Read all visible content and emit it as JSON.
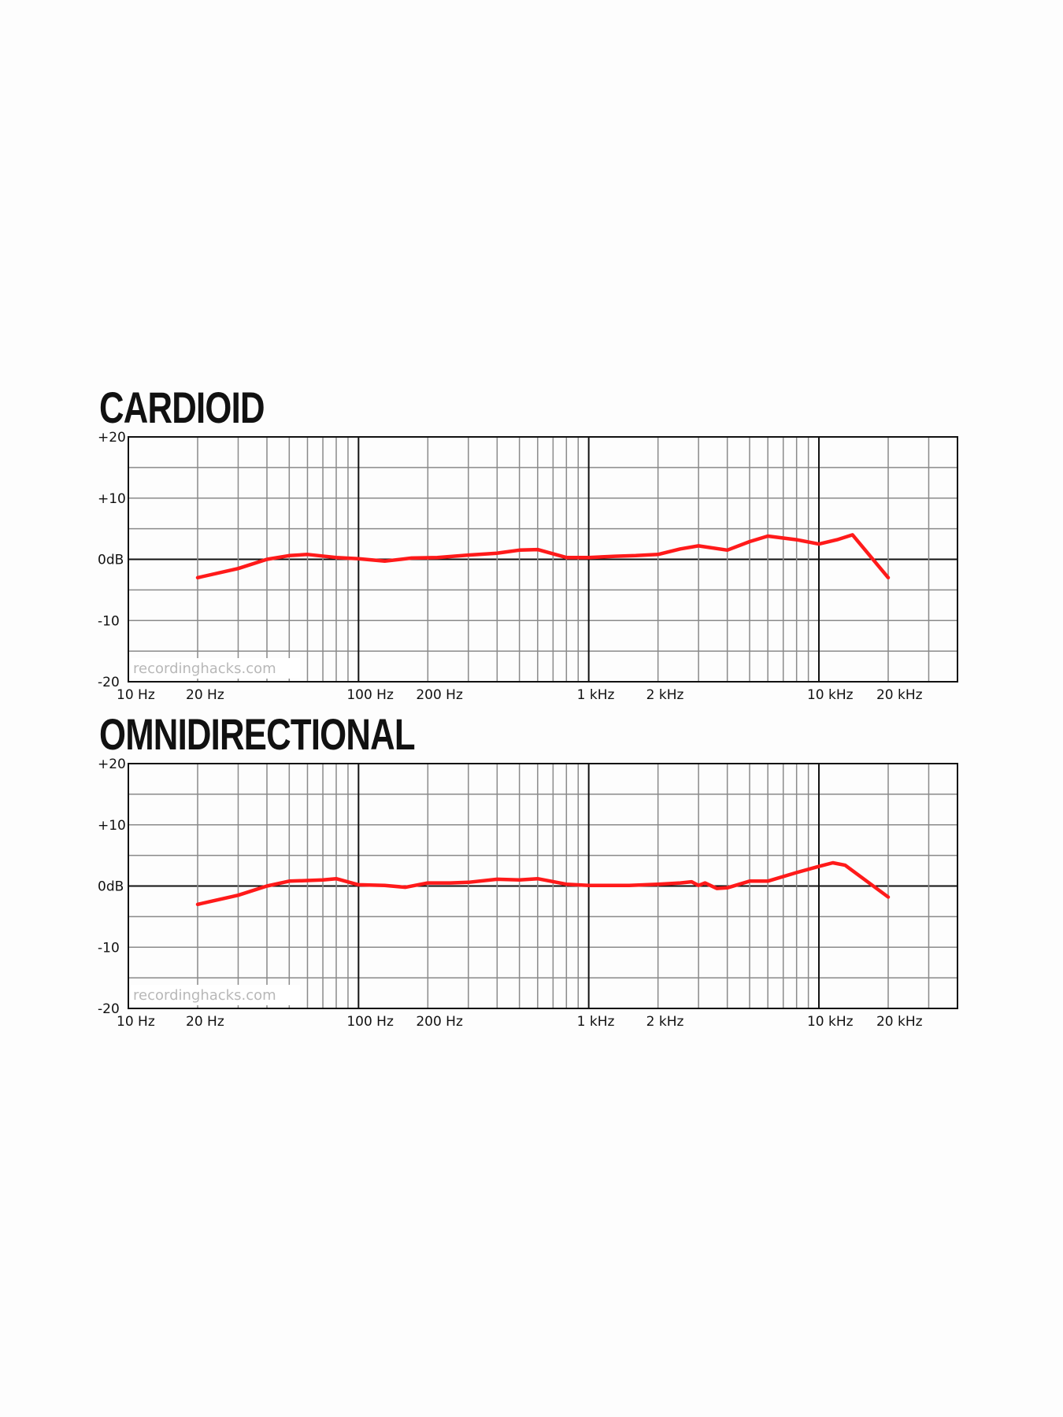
{
  "chart_data": [
    {
      "type": "line",
      "title": "CARDIOID",
      "watermark": "recordinghacks.com",
      "xscale": "log",
      "xlim": [
        10,
        40000
      ],
      "ylim": [
        -20,
        20
      ],
      "x_tick_labels": [
        {
          "value": 10,
          "label": "10 Hz"
        },
        {
          "value": 20,
          "label": "20 Hz"
        },
        {
          "value": 100,
          "label": "100 Hz"
        },
        {
          "value": 200,
          "label": "200 Hz"
        },
        {
          "value": 1000,
          "label": "1 kHz"
        },
        {
          "value": 2000,
          "label": "2 kHz"
        },
        {
          "value": 10000,
          "label": "10 kHz"
        },
        {
          "value": 20000,
          "label": "20 kHz"
        }
      ],
      "y_tick_labels": [
        {
          "value": 20,
          "label": "+20"
        },
        {
          "value": 10,
          "label": "+10"
        },
        {
          "value": 0,
          "label": "0dB"
        },
        {
          "value": -10,
          "label": "-10"
        },
        {
          "value": -20,
          "label": "-20"
        }
      ],
      "grid": true,
      "line_color": "#ff1a1a",
      "series": [
        {
          "x": [
            20,
            30,
            40,
            50,
            60,
            80,
            100,
            130,
            170,
            220,
            300,
            400,
            500,
            600,
            800,
            1000,
            1300,
            1600,
            2000,
            2500,
            3000,
            4000,
            5000,
            6000,
            8000,
            10000,
            12000,
            14000,
            20000
          ],
          "y": [
            -3,
            -1.5,
            0,
            0.6,
            0.8,
            0.3,
            0.1,
            -0.3,
            0.2,
            0.3,
            0.7,
            1.0,
            1.5,
            1.6,
            0.3,
            0.3,
            0.5,
            0.6,
            0.8,
            1.7,
            2.2,
            1.5,
            2.9,
            3.8,
            3.2,
            2.5,
            3.2,
            4.0,
            -3
          ]
        }
      ]
    },
    {
      "type": "line",
      "title": "OMNIDIRECTIONAL",
      "watermark": "recordinghacks.com",
      "xscale": "log",
      "xlim": [
        10,
        40000
      ],
      "ylim": [
        -20,
        20
      ],
      "x_tick_labels": [
        {
          "value": 10,
          "label": "10 Hz"
        },
        {
          "value": 20,
          "label": "20 Hz"
        },
        {
          "value": 100,
          "label": "100 Hz"
        },
        {
          "value": 200,
          "label": "200 Hz"
        },
        {
          "value": 1000,
          "label": "1 kHz"
        },
        {
          "value": 2000,
          "label": "2 kHz"
        },
        {
          "value": 10000,
          "label": "10 kHz"
        },
        {
          "value": 20000,
          "label": "20 kHz"
        }
      ],
      "y_tick_labels": [
        {
          "value": 20,
          "label": "+20"
        },
        {
          "value": 10,
          "label": "+10"
        },
        {
          "value": 0,
          "label": "0dB"
        },
        {
          "value": -10,
          "label": "-10"
        },
        {
          "value": -20,
          "label": "-20"
        }
      ],
      "grid": true,
      "line_color": "#ff1a1a",
      "series": [
        {
          "x": [
            20,
            30,
            40,
            50,
            60,
            70,
            80,
            100,
            130,
            160,
            200,
            250,
            300,
            400,
            500,
            600,
            800,
            1000,
            1500,
            2000,
            2500,
            2800,
            3000,
            3200,
            3600,
            4000,
            5000,
            6000,
            8000,
            10000,
            11500,
            13000,
            20000
          ],
          "y": [
            -3,
            -1.5,
            0,
            0.8,
            0.9,
            1.0,
            1.2,
            0.2,
            0.1,
            -0.2,
            0.5,
            0.5,
            0.6,
            1.1,
            1.0,
            1.2,
            0.3,
            0.1,
            0.1,
            0.3,
            0.5,
            0.7,
            0.1,
            0.5,
            -0.4,
            -0.3,
            0.8,
            0.8,
            2.2,
            3.2,
            3.8,
            3.4,
            -1.8
          ]
        }
      ]
    }
  ]
}
